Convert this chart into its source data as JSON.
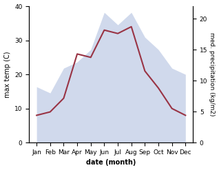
{
  "months": [
    "Jan",
    "Feb",
    "Mar",
    "Apr",
    "May",
    "Jun",
    "Jul",
    "Aug",
    "Sep",
    "Oct",
    "Nov",
    "Dec"
  ],
  "temperature": [
    8,
    9,
    13,
    26,
    25,
    33,
    32,
    34,
    21,
    16,
    10,
    8
  ],
  "precipitation": [
    9,
    8,
    12,
    13,
    15,
    21,
    19,
    21,
    17,
    15,
    12,
    11
  ],
  "temp_color": "#993344",
  "precip_color": "#aabbdd",
  "precip_fill_alpha": 0.55,
  "xlabel": "date (month)",
  "ylabel_left": "max temp (C)",
  "ylabel_right": "med. precipitation (kg/m2)",
  "ylim_left": [
    0,
    40
  ],
  "ylim_right": [
    0,
    22
  ],
  "yticks_left": [
    0,
    10,
    20,
    30,
    40
  ],
  "yticks_right": [
    0,
    5,
    10,
    15,
    20
  ],
  "fig_width": 3.18,
  "fig_height": 2.47,
  "dpi": 100
}
